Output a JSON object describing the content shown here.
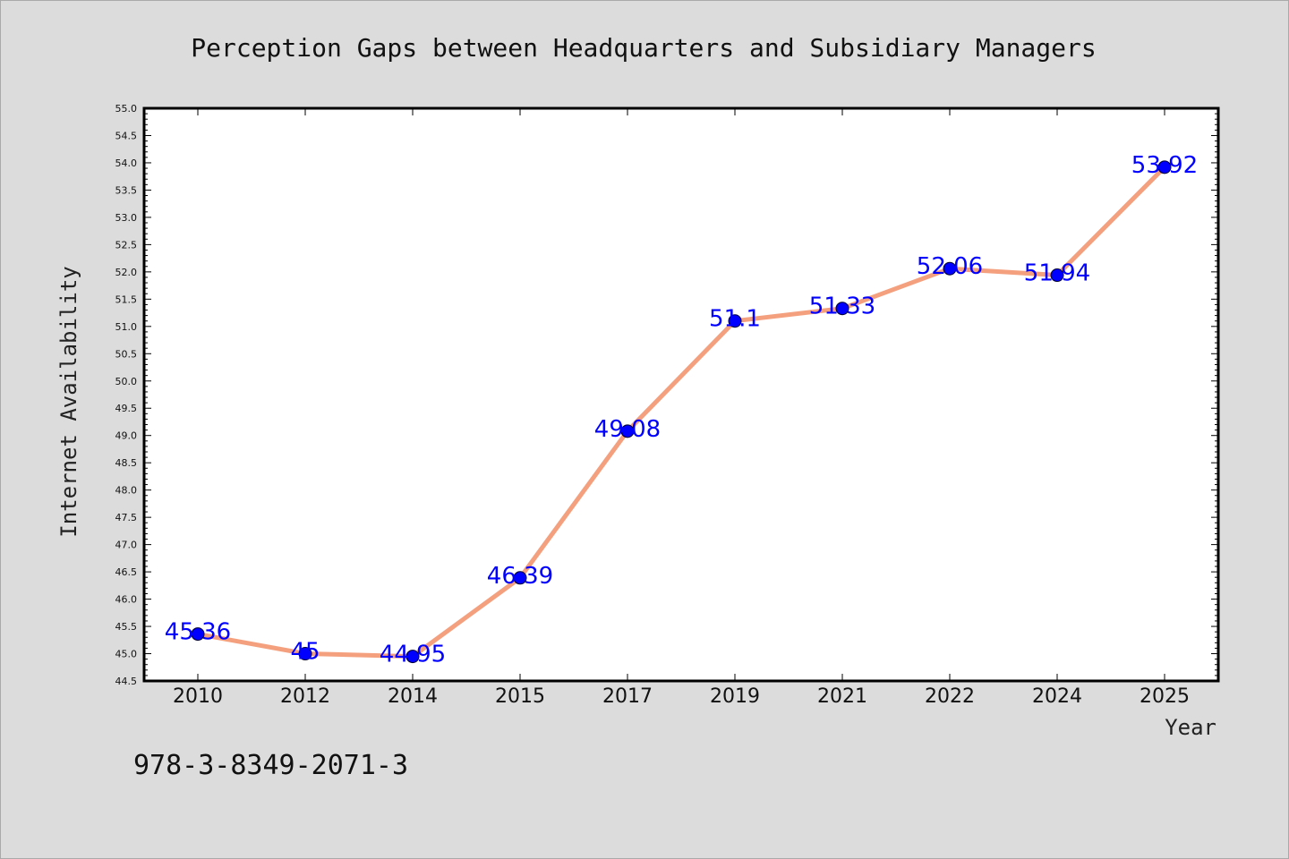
{
  "chart_data": {
    "type": "line",
    "title": "Perception Gaps between Headquarters and Subsidiary Managers",
    "xlabel": "Year",
    "ylabel": "Internet Availability",
    "categories": [
      "2010",
      "2012",
      "2014",
      "2015",
      "2017",
      "2019",
      "2021",
      "2022",
      "2024",
      "2025"
    ],
    "values": [
      45.36,
      45,
      44.95,
      46.39,
      49.08,
      51.1,
      51.33,
      52.06,
      51.94,
      53.92
    ],
    "data_labels": [
      "45.36",
      "45",
      "44.95",
      "46.39",
      "49.08",
      "51.1",
      "51.33",
      "52.06",
      "51.94",
      "53.92"
    ],
    "ylim": [
      44.5,
      55.0
    ],
    "yticks": [
      "44.5",
      "45.0",
      "45.5",
      "46.0",
      "46.5",
      "47.0",
      "47.5",
      "48.0",
      "48.5",
      "49.0",
      "49.5",
      "50.0",
      "50.5",
      "51.0",
      "51.5",
      "52.0",
      "52.5",
      "53.0",
      "53.5",
      "54.0",
      "54.5",
      "55.0"
    ],
    "grid": false,
    "legend": "none",
    "line_color": "#f4a07e",
    "marker_color": "#0000ff",
    "label_color": "#0000ff"
  },
  "annotation": {
    "isbn": "978-3-8349-2071-3"
  }
}
